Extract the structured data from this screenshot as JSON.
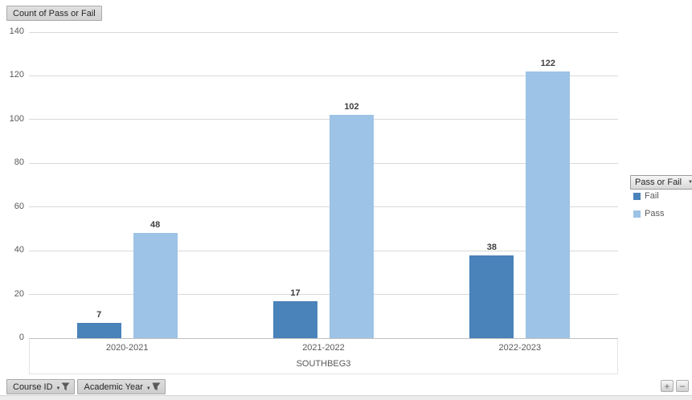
{
  "pivot_buttons": {
    "value_field": "Count of Pass or Fail",
    "legend_field": "Pass or Fail",
    "axis_fields": [
      "Course ID",
      "Academic Year"
    ]
  },
  "ui": {
    "dropdown_arrow": "▼",
    "zoom_in_label": "+",
    "zoom_out_label": "−"
  },
  "chart_data": {
    "type": "bar",
    "categories": [
      "2020-2021",
      "2021-2022",
      "2022-2023"
    ],
    "series": [
      {
        "name": "Fail",
        "color": "#4a82ba",
        "values": [
          7,
          17,
          38
        ]
      },
      {
        "name": "Pass",
        "color": "#9dc3e6",
        "values": [
          48,
          102,
          122
        ]
      }
    ],
    "title": "",
    "xlabel": "SOUTHBEG3",
    "ylabel": "",
    "ylim": [
      0,
      140
    ],
    "ytick_step": 20,
    "grid": true,
    "legend_position": "right",
    "data_labels": true
  }
}
